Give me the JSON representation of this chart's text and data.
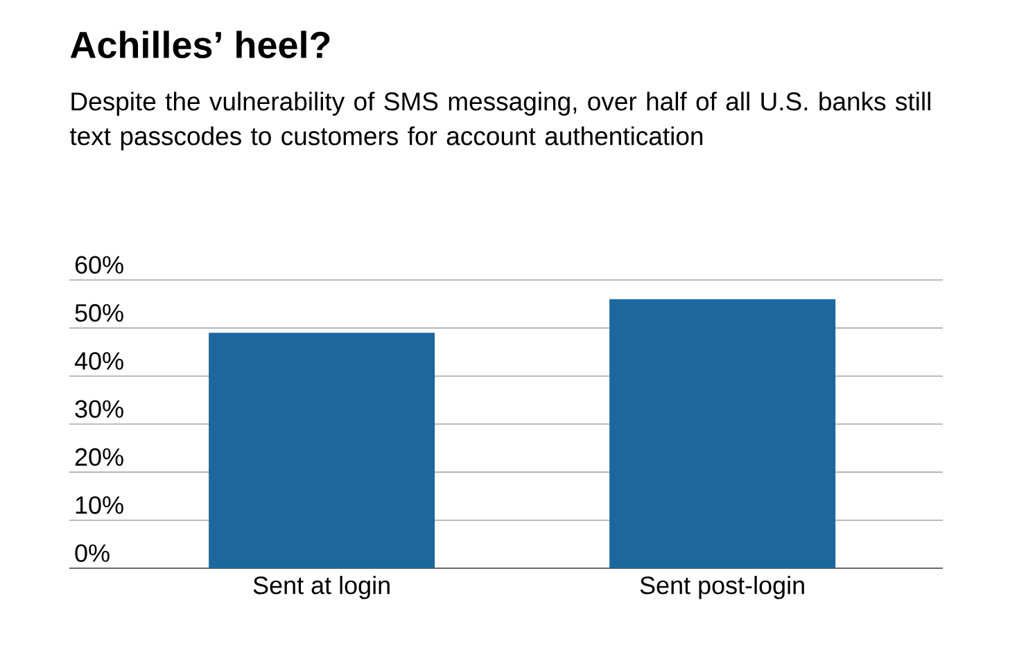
{
  "chart_data": {
    "type": "bar",
    "title": "Achilles’ heel?",
    "subtitle": "Despite the vulnerability of SMS messaging, over half of all U.S. banks still text passcodes to customers for account authentication",
    "categories": [
      "Sent at login",
      "Sent post-login"
    ],
    "values": [
      49,
      56
    ],
    "color": "#1b679e",
    "ylim": [
      0,
      60
    ],
    "yticks": [
      {
        "value": 0,
        "label": "0%"
      },
      {
        "value": 10,
        "label": "10%"
      },
      {
        "value": 20,
        "label": "20%"
      },
      {
        "value": 30,
        "label": "30%"
      },
      {
        "value": 40,
        "label": "40%"
      },
      {
        "value": 50,
        "label": "50%"
      },
      {
        "value": 60,
        "label": "60%"
      }
    ],
    "grid": "y"
  }
}
